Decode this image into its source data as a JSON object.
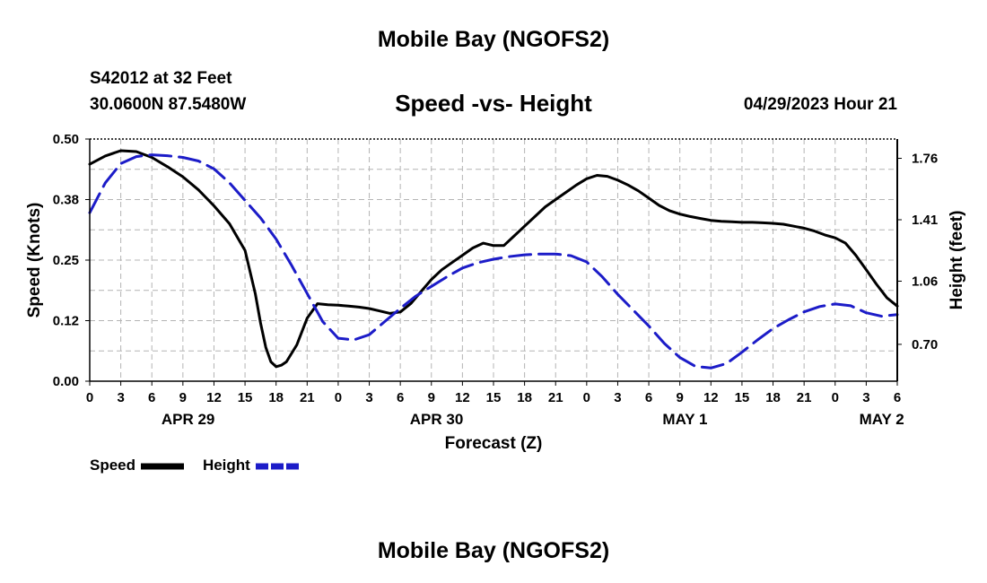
{
  "header": {
    "title": "Mobile Bay (NGOFS2)",
    "station": "S42012 at 32 Feet",
    "coords": "30.0600N  87.5480W",
    "subtitle": "Speed -vs- Height",
    "datetime": "04/29/2023 Hour 21",
    "footer_title": "Mobile Bay (NGOFS2)"
  },
  "chart_data": {
    "type": "line",
    "title": "Speed -vs- Height",
    "xlabel": "Forecast (Z)",
    "ylabel": "Speed (Knots)",
    "y2label": "Height (feet)",
    "x_unit": "hours since 2023-04-29 00Z",
    "xlim": [
      0,
      78
    ],
    "ylim": [
      0,
      0.5
    ],
    "y2lim": [
      0.49,
      1.87
    ],
    "grid": true,
    "legend_position": "bottom-left",
    "x_ticks": [
      0,
      3,
      6,
      9,
      12,
      15,
      18,
      21,
      24,
      27,
      30,
      33,
      36,
      39,
      42,
      45,
      48,
      51,
      54,
      57,
      60,
      63,
      66,
      69,
      72,
      75,
      78
    ],
    "x_tick_labels": [
      "0",
      "3",
      "6",
      "9",
      "12",
      "15",
      "18",
      "21",
      "0",
      "3",
      "6",
      "9",
      "12",
      "15",
      "18",
      "21",
      "0",
      "3",
      "6",
      "9",
      "12",
      "15",
      "18",
      "21",
      "0",
      "3",
      "6"
    ],
    "day_labels": [
      {
        "x": 9.5,
        "label": "APR 29"
      },
      {
        "x": 33.5,
        "label": "APR 30"
      },
      {
        "x": 57.5,
        "label": "MAY 1"
      },
      {
        "x": 76.5,
        "label": "MAY 2"
      }
    ],
    "y_ticks": [
      0.0,
      0.125,
      0.25,
      0.375,
      0.5
    ],
    "y_tick_labels": [
      "0.00",
      "0.12",
      "0.25",
      "0.38",
      "0.50"
    ],
    "y2_ticks": [
      0.7,
      1.06,
      1.41,
      1.76
    ],
    "y2_tick_labels": [
      "0.70",
      "1.06",
      "1.41",
      "1.76"
    ],
    "series": [
      {
        "name": "Speed",
        "axis": "left",
        "color": "#000000",
        "dash": "solid",
        "x": [
          0,
          1.5,
          3,
          4.5,
          6,
          7.5,
          9,
          10.5,
          12,
          13.5,
          15,
          16,
          16.5,
          17,
          17.5,
          18,
          18.5,
          19,
          20,
          21,
          22,
          23,
          24,
          25,
          26,
          27,
          28,
          29,
          30,
          31,
          32,
          33,
          34,
          35,
          36,
          37,
          38,
          39,
          40,
          41,
          42,
          43,
          44,
          45,
          46,
          47,
          48,
          49,
          50,
          51,
          52,
          53,
          54,
          55,
          56,
          57,
          58,
          59,
          60,
          61,
          62,
          63,
          64,
          65,
          66,
          67,
          68,
          69,
          70,
          71,
          72,
          73,
          74,
          75,
          76,
          77,
          78
        ],
        "values": [
          0.448,
          0.465,
          0.476,
          0.474,
          0.462,
          0.443,
          0.422,
          0.395,
          0.362,
          0.325,
          0.27,
          0.18,
          0.12,
          0.07,
          0.04,
          0.03,
          0.033,
          0.04,
          0.075,
          0.13,
          0.16,
          0.158,
          0.157,
          0.155,
          0.153,
          0.15,
          0.145,
          0.14,
          0.143,
          0.16,
          0.185,
          0.21,
          0.23,
          0.245,
          0.26,
          0.275,
          0.285,
          0.28,
          0.28,
          0.3,
          0.32,
          0.34,
          0.36,
          0.375,
          0.39,
          0.405,
          0.418,
          0.425,
          0.423,
          0.415,
          0.405,
          0.393,
          0.378,
          0.363,
          0.352,
          0.345,
          0.34,
          0.336,
          0.332,
          0.33,
          0.329,
          0.328,
          0.328,
          0.327,
          0.326,
          0.324,
          0.32,
          0.316,
          0.31,
          0.302,
          0.296,
          0.285,
          0.26,
          0.23,
          0.2,
          0.172,
          0.155
        ]
      },
      {
        "name": "Height",
        "axis": "right",
        "color": "#1c1cc8",
        "dash": "dashed",
        "x": [
          0,
          1.5,
          3,
          4.5,
          6,
          7.5,
          9,
          10.5,
          12,
          13.5,
          15,
          16.5,
          18,
          19.5,
          21,
          22.5,
          24,
          25.5,
          27,
          28.5,
          30,
          31.5,
          33,
          34.5,
          36,
          37.5,
          39,
          40.5,
          42,
          43.5,
          45,
          46.5,
          48,
          49.5,
          51,
          52.5,
          54,
          55.5,
          57,
          58.5,
          60,
          61.5,
          63,
          64.5,
          66,
          67.5,
          69,
          70.5,
          72,
          73.5,
          75,
          76.5,
          78
        ],
        "values": [
          1.45,
          1.62,
          1.73,
          1.77,
          1.78,
          1.775,
          1.765,
          1.745,
          1.7,
          1.62,
          1.52,
          1.42,
          1.3,
          1.15,
          0.99,
          0.83,
          0.735,
          0.725,
          0.755,
          0.83,
          0.905,
          0.975,
          1.03,
          1.085,
          1.135,
          1.165,
          1.185,
          1.2,
          1.21,
          1.215,
          1.215,
          1.205,
          1.17,
          1.085,
          0.985,
          0.895,
          0.805,
          0.705,
          0.625,
          0.575,
          0.565,
          0.59,
          0.655,
          0.725,
          0.79,
          0.84,
          0.885,
          0.915,
          0.93,
          0.92,
          0.88,
          0.86,
          0.87
        ]
      }
    ]
  },
  "legend": {
    "speed_label": "Speed",
    "height_label": "Height"
  }
}
